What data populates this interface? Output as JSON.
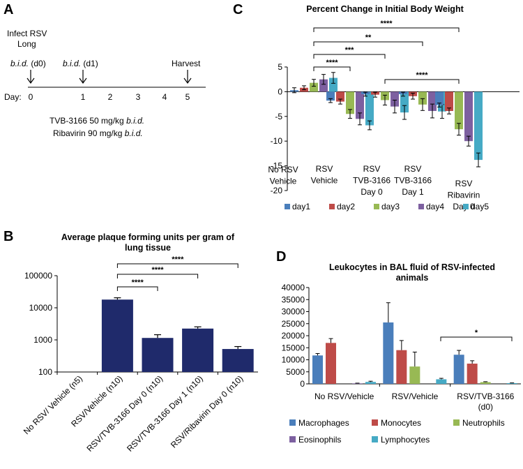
{
  "panel_labels": {
    "a": "A",
    "b": "B",
    "c": "C",
    "d": "D"
  },
  "timeline": {
    "infect_line1": "Infect RSV",
    "infect_line2": "Long",
    "bid_d0_italic": "b.i.d.",
    "bid_d0_suffix": "(d0)",
    "bid_d1_italic": "b.i.d.",
    "bid_d1_suffix": "(d1)",
    "harvest": "Harvest",
    "day_label": "Day:",
    "days": [
      "0",
      "1",
      "2",
      "3",
      "4",
      "5"
    ],
    "dose1_prefix": "TVB-3166 50 mg/kg ",
    "dose1_italic": "b.i.d.",
    "dose2_prefix": "Ribavirin 90 mg/kg ",
    "dose2_italic": "b.i.d."
  },
  "chart_data": [
    {
      "id": "B",
      "type": "bar",
      "title_line1": "Average plaque forming units per gram of",
      "title_line2": "lung tissue",
      "yscale": "log",
      "ylim": [
        100,
        100000
      ],
      "yticks": [
        "100",
        "1000",
        "10000",
        "100000"
      ],
      "categories": [
        "No RSV/ Vehicle (n5)",
        "RSV/Vehicle (n10)",
        "RSV/TVB-3166 Day 0 (n10)",
        "RSV/TVB-3166 Day 1 (n10)",
        "RSV/Ribavirin Day 0 (n10)"
      ],
      "values": [
        null,
        18000,
        1150,
        2250,
        520
      ],
      "errors": [
        null,
        2500,
        300,
        300,
        100
      ],
      "color": "#1f2a6b",
      "significance": [
        {
          "from": 1,
          "to": 2,
          "label": "****"
        },
        {
          "from": 1,
          "to": 3,
          "label": "****"
        },
        {
          "from": 1,
          "to": 4,
          "label": "****"
        }
      ]
    },
    {
      "id": "C",
      "type": "bar",
      "title": "Percent Change in Initial Body Weight",
      "ylim": [
        -20,
        5
      ],
      "yticks": [
        "5",
        "0",
        "-5",
        "-10",
        "-15",
        "-20"
      ],
      "groups": [
        {
          "line1": "No RSV",
          "line2": "Vehicle",
          "line3": "",
          "line4": ""
        },
        {
          "line1": "RSV",
          "line2": "Vehicle",
          "line3": "",
          "line4": ""
        },
        {
          "line1": "RSV",
          "line2": "TVB-3166",
          "line3": "Day 0",
          "line4": ""
        },
        {
          "line1": "RSV",
          "line2": "TVB-3166",
          "line3": "Day 1",
          "line4": ""
        },
        {
          "line1": "RSV",
          "line2": "Ribavirin",
          "line3": "Day 0",
          "line4": ""
        }
      ],
      "series": [
        {
          "name": "day1",
          "color": "#4a7ebb",
          "values": [
            0.3,
            -1.8,
            -0.5,
            -0.5,
            -2.7
          ],
          "errors": [
            0.5,
            0.4,
            0.4,
            0.4,
            0.4
          ]
        },
        {
          "name": "day2",
          "color": "#be4b48",
          "values": [
            0.8,
            -2.0,
            -0.6,
            -0.9,
            -3.9
          ],
          "errors": [
            0.4,
            0.5,
            0.5,
            0.6,
            0.6
          ]
        },
        {
          "name": "day3",
          "color": "#98b954",
          "values": [
            1.8,
            -4.5,
            -1.7,
            -2.6,
            -7.6
          ],
          "errors": [
            0.7,
            0.9,
            1.0,
            1.2,
            1.2
          ]
        },
        {
          "name": "day4",
          "color": "#7d60a0",
          "values": [
            2.5,
            -5.5,
            -3.0,
            -3.9,
            -10.0
          ],
          "errors": [
            1.0,
            1.2,
            1.3,
            1.4,
            1.0
          ]
        },
        {
          "name": "day5",
          "color": "#46aac5",
          "values": [
            2.8,
            -6.8,
            -4.2,
            -4.0,
            -13.8
          ],
          "errors": [
            1.1,
            0.9,
            1.4,
            1.4,
            1.4
          ]
        }
      ],
      "significance": [
        {
          "from": 0,
          "to": 1,
          "label": "****"
        },
        {
          "from": 0,
          "to": 2,
          "label": "***"
        },
        {
          "from": 0,
          "to": 3,
          "label": "**"
        },
        {
          "from": 0,
          "to": 4,
          "label": "****"
        },
        {
          "from": 2,
          "to": 4,
          "label": "****"
        }
      ]
    },
    {
      "id": "D",
      "type": "bar",
      "title_line1": "Leukocytes in BAL fluid of RSV-infected",
      "title_line2": "animals",
      "ylim": [
        0,
        40000
      ],
      "yticks": [
        "40000",
        "35000",
        "30000",
        "25000",
        "20000",
        "15000",
        "10000",
        "5000",
        "0"
      ],
      "groups": [
        {
          "line1": "No RSV/Vehicle",
          "line2": ""
        },
        {
          "line1": "RSV/Vehicle",
          "line2": ""
        },
        {
          "line1": "RSV/TVB-3166",
          "line2": "(d0)"
        }
      ],
      "series": [
        {
          "name": "Macrophages",
          "color": "#4a7ebb",
          "values": [
            11800,
            25500,
            12100
          ],
          "errors": [
            800,
            8200,
            1800
          ]
        },
        {
          "name": "Monocytes",
          "color": "#be4b48",
          "values": [
            17000,
            14000,
            8400
          ],
          "errors": [
            1800,
            4000,
            1200
          ]
        },
        {
          "name": "Neutrophils",
          "color": "#98b954",
          "values": [
            0,
            7200,
            700
          ],
          "errors": [
            0,
            6000,
            200
          ]
        },
        {
          "name": "Eosinophils",
          "color": "#7d60a0",
          "values": [
            200,
            0,
            0
          ],
          "errors": [
            100,
            0,
            0
          ]
        },
        {
          "name": "Lymphocytes",
          "color": "#46aac5",
          "values": [
            800,
            1900,
            300
          ],
          "errors": [
            300,
            400,
            100
          ]
        }
      ],
      "significance": [
        {
          "from": 1,
          "to": 2,
          "label": "*"
        }
      ]
    }
  ]
}
